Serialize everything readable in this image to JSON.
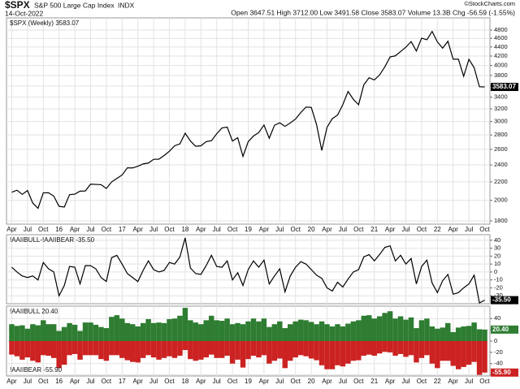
{
  "header": {
    "symbol": "$SPX",
    "name": "S&P 500 Large Cap Index",
    "exchange": "INDX",
    "date": "14-Oct-2022",
    "quote": "Open 3647.51 High 3712.00 Low 3491.58 Close 3583.07 Volume 13.3B Chg -56.59 (-1.55%)",
    "source": "©StockCharts.com"
  },
  "chart_data": [
    {
      "type": "line",
      "log": true,
      "grid": true,
      "xlim": [
        "2015-03",
        "2022-11"
      ],
      "ylim": [
        1770,
        5110
      ],
      "yticks": [
        1800,
        2000,
        2200,
        2400,
        2600,
        2800,
        3000,
        3200,
        3400,
        3600,
        3800,
        4000,
        4200,
        4400,
        4600,
        4800
      ],
      "xticks": [
        {
          "value": "2015-04",
          "label": "Apr"
        },
        {
          "value": "2015-07",
          "label": "Jul"
        },
        {
          "value": "2015-10",
          "label": "Oct"
        },
        {
          "value": "2016-01",
          "label": "16"
        },
        {
          "value": "2016-04",
          "label": "Apr"
        },
        {
          "value": "2016-07",
          "label": "Jul"
        },
        {
          "value": "2016-10",
          "label": "Oct"
        },
        {
          "value": "2017-01",
          "label": "17"
        },
        {
          "value": "2017-04",
          "label": "Apr"
        },
        {
          "value": "2017-07",
          "label": "Jul"
        },
        {
          "value": "2017-10",
          "label": "Oct"
        },
        {
          "value": "2018-01",
          "label": "18"
        },
        {
          "value": "2018-04",
          "label": "Apr"
        },
        {
          "value": "2018-07",
          "label": "Jul"
        },
        {
          "value": "2018-10",
          "label": "Oct"
        },
        {
          "value": "2019-01",
          "label": "19"
        },
        {
          "value": "2019-04",
          "label": "Apr"
        },
        {
          "value": "2019-07",
          "label": "Jul"
        },
        {
          "value": "2019-10",
          "label": "Oct"
        },
        {
          "value": "2020-01",
          "label": "20"
        },
        {
          "value": "2020-04",
          "label": "Apr"
        },
        {
          "value": "2020-07",
          "label": "Jul"
        },
        {
          "value": "2020-10",
          "label": "Oct"
        },
        {
          "value": "2021-01",
          "label": "21"
        },
        {
          "value": "2021-04",
          "label": "Apr"
        },
        {
          "value": "2021-07",
          "label": "Jul"
        },
        {
          "value": "2021-10",
          "label": "Oct"
        },
        {
          "value": "2022-01",
          "label": "22"
        },
        {
          "value": "2022-04",
          "label": "Apr"
        },
        {
          "value": "2022-07",
          "label": "Jul"
        },
        {
          "value": "2022-10",
          "label": "Oct"
        }
      ],
      "x": [
        "2015-04",
        "2015-05",
        "2015-06",
        "2015-07",
        "2015-08",
        "2015-09",
        "2015-10",
        "2015-11",
        "2015-12",
        "2016-01",
        "2016-02",
        "2016-03",
        "2016-04",
        "2016-05",
        "2016-06",
        "2016-07",
        "2016-08",
        "2016-09",
        "2016-10",
        "2016-11",
        "2016-12",
        "2017-01",
        "2017-02",
        "2017-03",
        "2017-04",
        "2017-05",
        "2017-06",
        "2017-07",
        "2017-08",
        "2017-09",
        "2017-10",
        "2017-11",
        "2017-12",
        "2018-01",
        "2018-02",
        "2018-03",
        "2018-04",
        "2018-05",
        "2018-06",
        "2018-07",
        "2018-08",
        "2018-09",
        "2018-10",
        "2018-11",
        "2018-12",
        "2019-01",
        "2019-02",
        "2019-03",
        "2019-04",
        "2019-05",
        "2019-06",
        "2019-07",
        "2019-08",
        "2019-09",
        "2019-10",
        "2019-11",
        "2019-12",
        "2020-01",
        "2020-02",
        "2020-03",
        "2020-04",
        "2020-05",
        "2020-06",
        "2020-07",
        "2020-08",
        "2020-09",
        "2020-10",
        "2020-11",
        "2020-12",
        "2021-01",
        "2021-02",
        "2021-03",
        "2021-04",
        "2021-05",
        "2021-06",
        "2021-07",
        "2021-08",
        "2021-09",
        "2021-10",
        "2021-11",
        "2021-12",
        "2022-01",
        "2022-02",
        "2022-03",
        "2022-04",
        "2022-05",
        "2022-06",
        "2022-07",
        "2022-08",
        "2022-09",
        "2022-10"
      ],
      "series": [
        {
          "name": "$SPX (Weekly) 3583.07",
          "color": "#000000",
          "end_label": "3583.07",
          "values": [
            2086,
            2107,
            2063,
            2104,
            1972,
            1920,
            2079,
            2080,
            2044,
            1940,
            1932,
            2060,
            2065,
            2097,
            2099,
            2174,
            2171,
            2168,
            2126,
            2199,
            2239,
            2279,
            2364,
            2363,
            2384,
            2412,
            2423,
            2470,
            2472,
            2519,
            2575,
            2648,
            2674,
            2824,
            2714,
            2641,
            2648,
            2705,
            2718,
            2816,
            2902,
            2914,
            2712,
            2760,
            2507,
            2704,
            2784,
            2834,
            2946,
            2752,
            2942,
            2980,
            2926,
            2977,
            3038,
            3141,
            3231,
            3226,
            2954,
            2585,
            2912,
            3044,
            3100,
            3271,
            3500,
            3363,
            3270,
            3622,
            3756,
            3714,
            3811,
            3973,
            4181,
            4204,
            4298,
            4395,
            4523,
            4308,
            4605,
            4567,
            4766,
            4516,
            4374,
            4530,
            4132,
            4132,
            3785,
            4130,
            3955,
            3586,
            3583.07
          ]
        }
      ]
    },
    {
      "type": "line",
      "grid": true,
      "xlim": [
        "2015-03",
        "2022-11"
      ],
      "ylim": [
        -40,
        47
      ],
      "yticks": [
        40,
        30,
        20,
        10,
        0,
        -10,
        -20,
        -30
      ],
      "x": [
        "2015-04",
        "2015-05",
        "2015-06",
        "2015-07",
        "2015-08",
        "2015-09",
        "2015-10",
        "2015-11",
        "2015-12",
        "2016-01",
        "2016-02",
        "2016-03",
        "2016-04",
        "2016-05",
        "2016-06",
        "2016-07",
        "2016-08",
        "2016-09",
        "2016-10",
        "2016-11",
        "2016-12",
        "2017-01",
        "2017-02",
        "2017-03",
        "2017-04",
        "2017-05",
        "2017-06",
        "2017-07",
        "2017-08",
        "2017-09",
        "2017-10",
        "2017-11",
        "2017-12",
        "2018-01",
        "2018-02",
        "2018-03",
        "2018-04",
        "2018-05",
        "2018-06",
        "2018-07",
        "2018-08",
        "2018-09",
        "2018-10",
        "2018-11",
        "2018-12",
        "2019-01",
        "2019-02",
        "2019-03",
        "2019-04",
        "2019-05",
        "2019-06",
        "2019-07",
        "2019-08",
        "2019-09",
        "2019-10",
        "2019-11",
        "2019-12",
        "2020-01",
        "2020-02",
        "2020-03",
        "2020-04",
        "2020-05",
        "2020-06",
        "2020-07",
        "2020-08",
        "2020-09",
        "2020-10",
        "2020-11",
        "2020-12",
        "2021-01",
        "2021-02",
        "2021-03",
        "2021-04",
        "2021-05",
        "2021-06",
        "2021-07",
        "2021-08",
        "2021-09",
        "2021-10",
        "2021-11",
        "2021-12",
        "2022-01",
        "2022-02",
        "2022-03",
        "2022-04",
        "2022-05",
        "2022-06",
        "2022-07",
        "2022-08",
        "2022-09",
        "2022-10"
      ],
      "series": [
        {
          "name": "!AAIIBULL-!AAIIBEAR -35.50",
          "color": "#000000",
          "end_label": "-35.50",
          "values": [
            6,
            0,
            -5,
            -7,
            -5,
            -10,
            12,
            4,
            0,
            -30,
            -17,
            7,
            6,
            -15,
            8,
            8,
            4,
            -7,
            -12,
            18,
            21,
            10,
            -2,
            -7,
            -12,
            2,
            14,
            3,
            0,
            2,
            12,
            10,
            19,
            43,
            5,
            -2,
            -3,
            8,
            21,
            7,
            6,
            14,
            -10,
            -1,
            -17,
            3,
            14,
            6,
            15,
            -15,
            -5,
            4,
            -25,
            -5,
            6,
            13,
            10,
            3,
            -4,
            -8,
            -20,
            -24,
            -13,
            -19,
            -9,
            0,
            3,
            19,
            22,
            14,
            22,
            31,
            33,
            14,
            21,
            10,
            17,
            -15,
            7,
            15,
            -14,
            -26,
            -11,
            -3,
            -28,
            -26,
            -20,
            -15,
            -4,
            -39,
            -35.5
          ]
        }
      ]
    },
    {
      "type": "bar",
      "grid": true,
      "xlim": [
        "2015-03",
        "2022-11"
      ],
      "ylim": [
        -62,
        62
      ],
      "yticks": [
        40,
        20,
        0,
        -20,
        -40,
        -60
      ],
      "xticks": [
        {
          "value": "2015-04",
          "label": "Apr"
        },
        {
          "value": "2015-07",
          "label": "Jul"
        },
        {
          "value": "2015-10",
          "label": "Oct"
        },
        {
          "value": "2016-01",
          "label": "16"
        },
        {
          "value": "2016-04",
          "label": "Apr"
        },
        {
          "value": "2016-07",
          "label": "Jul"
        },
        {
          "value": "2016-10",
          "label": "Oct"
        },
        {
          "value": "2017-01",
          "label": "17"
        },
        {
          "value": "2017-04",
          "label": "Apr"
        },
        {
          "value": "2017-07",
          "label": "Jul"
        },
        {
          "value": "2017-10",
          "label": "Oct"
        },
        {
          "value": "2018-01",
          "label": "18"
        },
        {
          "value": "2018-04",
          "label": "Apr"
        },
        {
          "value": "2018-07",
          "label": "Jul"
        },
        {
          "value": "2018-10",
          "label": "Oct"
        },
        {
          "value": "2019-01",
          "label": "19"
        },
        {
          "value": "2019-04",
          "label": "Apr"
        },
        {
          "value": "2019-07",
          "label": "Jul"
        },
        {
          "value": "2019-10",
          "label": "Oct"
        },
        {
          "value": "2020-01",
          "label": "20"
        },
        {
          "value": "2020-04",
          "label": "Apr"
        },
        {
          "value": "2020-07",
          "label": "Jul"
        },
        {
          "value": "2020-10",
          "label": "Oct"
        },
        {
          "value": "2021-01",
          "label": "21"
        },
        {
          "value": "2021-04",
          "label": "Apr"
        },
        {
          "value": "2021-07",
          "label": "Jul"
        },
        {
          "value": "2021-10",
          "label": "Oct"
        },
        {
          "value": "2022-01",
          "label": "22"
        },
        {
          "value": "2022-04",
          "label": "Apr"
        },
        {
          "value": "2022-07",
          "label": "Jul"
        },
        {
          "value": "2022-10",
          "label": "Oct"
        }
      ],
      "x": [
        "2015-04",
        "2015-05",
        "2015-06",
        "2015-07",
        "2015-08",
        "2015-09",
        "2015-10",
        "2015-11",
        "2015-12",
        "2016-01",
        "2016-02",
        "2016-03",
        "2016-04",
        "2016-05",
        "2016-06",
        "2016-07",
        "2016-08",
        "2016-09",
        "2016-10",
        "2016-11",
        "2016-12",
        "2017-01",
        "2017-02",
        "2017-03",
        "2017-04",
        "2017-05",
        "2017-06",
        "2017-07",
        "2017-08",
        "2017-09",
        "2017-10",
        "2017-11",
        "2017-12",
        "2018-01",
        "2018-02",
        "2018-03",
        "2018-04",
        "2018-05",
        "2018-06",
        "2018-07",
        "2018-08",
        "2018-09",
        "2018-10",
        "2018-11",
        "2018-12",
        "2019-01",
        "2019-02",
        "2019-03",
        "2019-04",
        "2019-05",
        "2019-06",
        "2019-07",
        "2019-08",
        "2019-09",
        "2019-10",
        "2019-11",
        "2019-12",
        "2020-01",
        "2020-02",
        "2020-03",
        "2020-04",
        "2020-05",
        "2020-06",
        "2020-07",
        "2020-08",
        "2020-09",
        "2020-10",
        "2020-11",
        "2020-12",
        "2021-01",
        "2021-02",
        "2021-03",
        "2021-04",
        "2021-05",
        "2021-06",
        "2021-07",
        "2021-08",
        "2021-09",
        "2021-10",
        "2021-11",
        "2021-12",
        "2022-01",
        "2022-02",
        "2022-03",
        "2022-04",
        "2022-05",
        "2022-06",
        "2022-07",
        "2022-08",
        "2022-09",
        "2022-10"
      ],
      "series": [
        {
          "name": "!AAIIBULL 20.40",
          "color": "#2e7d32",
          "end_label": "20.40",
          "values": [
            30,
            27,
            28,
            22,
            30,
            28,
            37,
            30,
            30,
            18,
            25,
            32,
            29,
            18,
            33,
            33,
            29,
            25,
            23,
            43,
            46,
            40,
            32,
            30,
            26,
            32,
            39,
            32,
            33,
            32,
            39,
            40,
            45,
            59,
            37,
            33,
            30,
            37,
            45,
            37,
            36,
            40,
            30,
            32,
            30,
            35,
            40,
            35,
            40,
            25,
            30,
            35,
            23,
            30,
            35,
            38,
            37,
            34,
            30,
            35,
            30,
            26,
            30,
            26,
            31,
            35,
            37,
            45,
            46,
            40,
            44,
            50,
            53,
            40,
            44,
            38,
            42,
            23,
            37,
            40,
            26,
            22,
            24,
            32,
            16,
            24,
            26,
            27,
            33,
            21,
            20.4
          ]
        },
        {
          "name": "!AAIIBEAR -55.90",
          "color": "#cc2222",
          "end_label": "-55.90",
          "values": [
            -24,
            -27,
            -33,
            -29,
            -35,
            -38,
            -25,
            -26,
            -30,
            -48,
            -42,
            -25,
            -23,
            -33,
            -25,
            -25,
            -25,
            -32,
            -35,
            -25,
            -25,
            -30,
            -34,
            -37,
            -38,
            -30,
            -25,
            -29,
            -33,
            -30,
            -27,
            -30,
            -26,
            -16,
            -32,
            -35,
            -33,
            -29,
            -24,
            -30,
            -30,
            -26,
            -40,
            -33,
            -47,
            -32,
            -26,
            -29,
            -25,
            -40,
            -35,
            -31,
            -48,
            -35,
            -29,
            -25,
            -27,
            -31,
            -34,
            -43,
            -50,
            -50,
            -43,
            -45,
            -40,
            -35,
            -34,
            -26,
            -24,
            -26,
            -22,
            -19,
            -20,
            -26,
            -23,
            -28,
            -25,
            -38,
            -30,
            -25,
            -40,
            -48,
            -35,
            -35,
            -44,
            -50,
            -46,
            -42,
            -37,
            -60,
            -55.9
          ]
        }
      ]
    }
  ]
}
